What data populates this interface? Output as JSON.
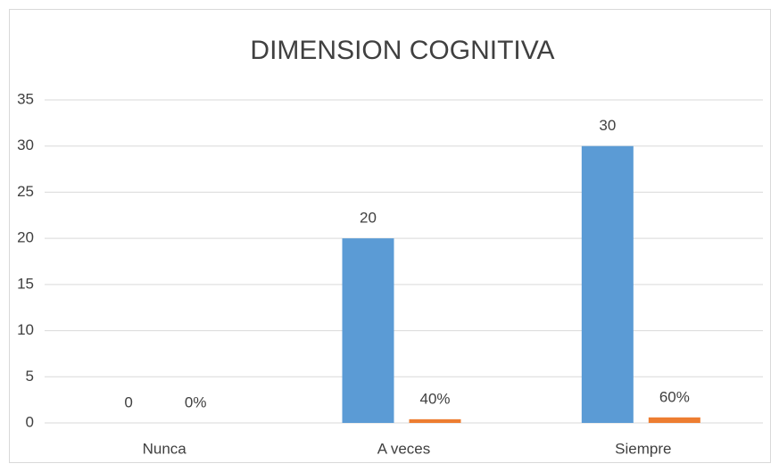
{
  "chart_data": {
    "type": "bar",
    "title": "DIMENSION COGNITIVA",
    "categories": [
      "Nunca",
      "A veces",
      "Siempre"
    ],
    "series": [
      {
        "color": "#5b9bd5",
        "values": [
          0,
          20,
          30
        ]
      },
      {
        "color": "#ed7d31",
        "values": [
          0,
          0.4,
          0.6
        ],
        "value_labels": [
          "0%",
          "40%",
          "60%"
        ]
      }
    ],
    "ylim": [
      0,
      35
    ],
    "yticks": [
      0,
      5,
      10,
      15,
      20,
      25,
      30,
      35
    ],
    "grid": true
  }
}
